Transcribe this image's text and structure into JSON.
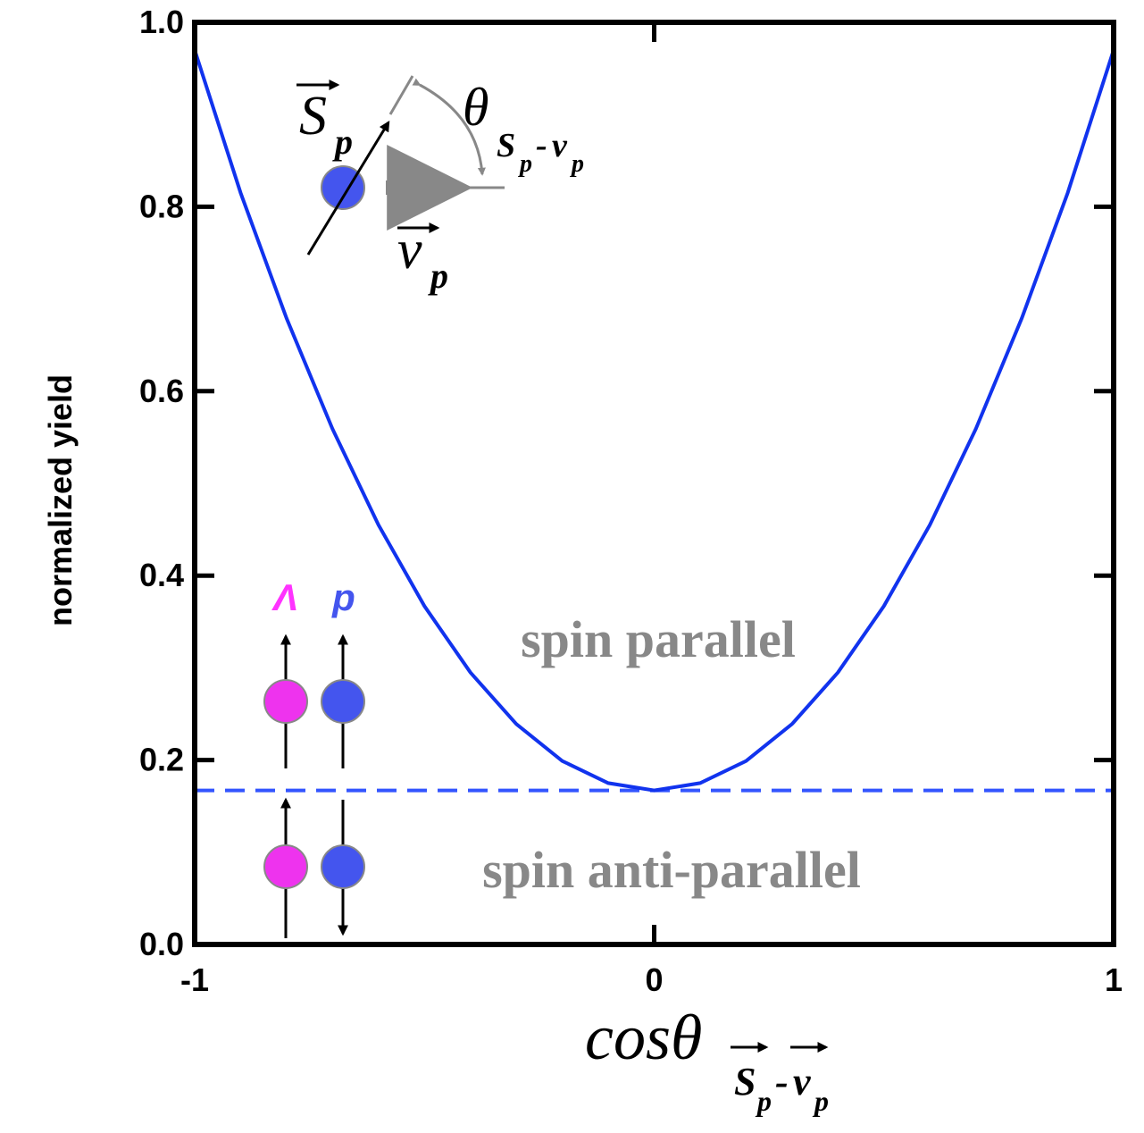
{
  "chart_data": {
    "type": "line",
    "ylabel": "normalized yield",
    "xlabel": "cosθ",
    "xlabel_sub": [
      "S",
      "p",
      "-",
      "v",
      "p"
    ],
    "x": [
      -1,
      -0.9,
      -0.8,
      -0.7,
      -0.6,
      -0.5,
      -0.4,
      -0.3,
      -0.2,
      -0.1,
      0,
      0.1,
      0.2,
      0.3,
      0.4,
      0.5,
      0.6,
      0.7,
      0.8,
      0.9,
      1
    ],
    "values": [
      0.97,
      0.815,
      0.679,
      0.559,
      0.455,
      0.367,
      0.295,
      0.239,
      0.199,
      0.175,
      0.167,
      0.175,
      0.199,
      0.239,
      0.295,
      0.367,
      0.455,
      0.559,
      0.679,
      0.815,
      0.97
    ],
    "color": "#1133ee",
    "hline": {
      "value": 0.167,
      "color": "#3355ff",
      "style": "dashed"
    },
    "xlim": [
      -1,
      1
    ],
    "xticks": [
      -1,
      0,
      1
    ],
    "ylim": [
      0,
      1
    ],
    "yticks": [
      {
        "value": 0,
        "label": "0.0"
      },
      {
        "value": 0.2,
        "label": "0.2"
      },
      {
        "value": 0.4,
        "label": "0.4"
      },
      {
        "value": 0.6,
        "label": "0.6"
      },
      {
        "value": 0.8,
        "label": "0.8"
      },
      {
        "value": 1,
        "label": "1.0"
      }
    ],
    "annotations": {
      "spin_parallel": "spin parallel",
      "spin_antiparallel": "spin anti-parallel",
      "lambda": "Λ",
      "proton": "p",
      "s_vec": "S",
      "v_vec": "v",
      "sub_p": "p",
      "theta": "θ",
      "dash": "-"
    }
  }
}
